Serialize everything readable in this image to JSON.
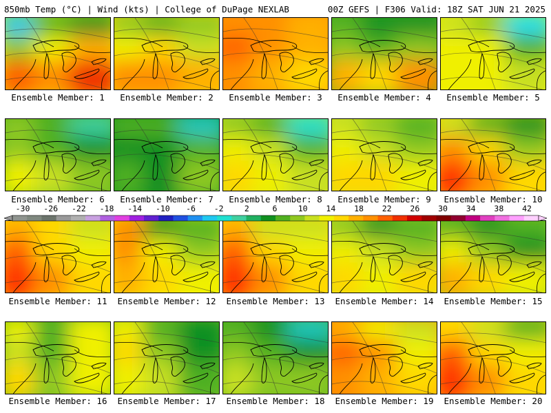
{
  "header": {
    "left": "850mb Temp (°C) | Wind (kts) | College of DuPage NEXLAB",
    "right": "00Z GEFS | F306 Valid: 18Z SAT JUN 21 2025"
  },
  "colorbar": {
    "labels": [
      "-30",
      "-26",
      "-22",
      "-18",
      "-14",
      "-10",
      "-6",
      "-2",
      "2",
      "6",
      "10",
      "14",
      "18",
      "22",
      "26",
      "30",
      "34",
      "38",
      "42"
    ],
    "colors": [
      "#8f948f",
      "#7f887f",
      "#6c746c",
      "#999999",
      "#b0b0b0",
      "#c8a0e0",
      "#b060e0",
      "#e040e0",
      "#a020e0",
      "#6020d0",
      "#2020c0",
      "#2050e0",
      "#2090f0",
      "#20c8f0",
      "#20e0d0",
      "#40d0a0",
      "#20b060",
      "#109020",
      "#50b020",
      "#90c820",
      "#c8e020",
      "#f0f000",
      "#ffd800",
      "#ffb000",
      "#ff9000",
      "#ff6000",
      "#f03000",
      "#d00000",
      "#a00000",
      "#800000",
      "#900030",
      "#c00080",
      "#e040c0",
      "#f070e0",
      "#ffa0ff",
      "#ffd0ff"
    ]
  },
  "members": [
    {
      "label": "Ensemble Member: 1",
      "c": [
        "#1ec8f0",
        "#50b020",
        "#109020",
        "#8cc820",
        "#f0f000",
        "#ffb000",
        "#ff6000",
        "#ff9000",
        "#f03000"
      ]
    },
    {
      "label": "Ensemble Member: 2",
      "c": [
        "#90c820",
        "#50b020",
        "#8cc820",
        "#f0f000",
        "#ffd800",
        "#c8e020",
        "#ff9000",
        "#ff9000",
        "#ffb000"
      ]
    },
    {
      "label": "Ensemble Member: 3",
      "c": [
        "#ff9000",
        "#ff9000",
        "#ffb000",
        "#ff6000",
        "#ff9000",
        "#ffb000",
        "#ff9000",
        "#ffb000",
        "#ffd800"
      ]
    },
    {
      "label": "Ensemble Member: 4",
      "c": [
        "#50b020",
        "#109020",
        "#109020",
        "#8cc820",
        "#50b020",
        "#8cc820",
        "#ffb000",
        "#ffd800",
        "#ff9000"
      ]
    },
    {
      "label": "Ensemble Member: 5",
      "c": [
        "#c8e020",
        "#8cc820",
        "#20e0f0",
        "#f0f000",
        "#f0f000",
        "#50b020",
        "#f0f000",
        "#f0f000",
        "#c8e020"
      ]
    },
    {
      "label": "Ensemble Member: 6",
      "c": [
        "#8cc820",
        "#50b020",
        "#40d0a0",
        "#8cc820",
        "#50b020",
        "#109020",
        "#f0f000",
        "#c8e020",
        "#8cc820"
      ]
    },
    {
      "label": "Ensemble Member: 7",
      "c": [
        "#50b020",
        "#50b020",
        "#20c8c0",
        "#109020",
        "#109020",
        "#50b020",
        "#50b020",
        "#109020",
        "#8cc820"
      ]
    },
    {
      "label": "Ensemble Member: 8",
      "c": [
        "#8cc820",
        "#50b020",
        "#20e0d0",
        "#f0f000",
        "#c8e020",
        "#50b020",
        "#ffd800",
        "#f0f000",
        "#c8e020"
      ]
    },
    {
      "label": "Ensemble Member: 9",
      "c": [
        "#c8e020",
        "#8cc820",
        "#50b020",
        "#f0f000",
        "#c8e020",
        "#8cc820",
        "#ffd800",
        "#ffd800",
        "#f0f000"
      ]
    },
    {
      "label": "Ensemble Member: 10",
      "c": [
        "#c8e020",
        "#50b020",
        "#109020",
        "#ff9000",
        "#ffd800",
        "#8cc820",
        "#ff3000",
        "#ff9000",
        "#ffd800"
      ]
    },
    {
      "label": "Ensemble Member: 11",
      "c": [
        "#ffb000",
        "#ffd800",
        "#c8e020",
        "#ff6000",
        "#ffd800",
        "#f0f000",
        "#ff3000",
        "#ff9000",
        "#ffd800"
      ]
    },
    {
      "label": "Ensemble Member: 12",
      "c": [
        "#ff9000",
        "#109020",
        "#50b020",
        "#ff9000",
        "#f0f000",
        "#8cc820",
        "#ffb000",
        "#ffd800",
        "#f0f000"
      ]
    },
    {
      "label": "Ensemble Member: 13",
      "c": [
        "#ffb000",
        "#c8e020",
        "#c8e020",
        "#ff6000",
        "#ffd800",
        "#f0f000",
        "#ff3000",
        "#ff9000",
        "#ffd800"
      ]
    },
    {
      "label": "Ensemble Member: 14",
      "c": [
        "#8cc820",
        "#109020",
        "#50b020",
        "#f0f000",
        "#c8e020",
        "#8cc820",
        "#ffd800",
        "#f0f000",
        "#ffd800"
      ]
    },
    {
      "label": "Ensemble Member: 15",
      "c": [
        "#50b020",
        "#109020",
        "#50b020",
        "#f0f000",
        "#8cc820",
        "#109020",
        "#ffb000",
        "#ffd800",
        "#f0f000"
      ]
    },
    {
      "label": "Ensemble Member: 16",
      "c": [
        "#f0f000",
        "#50b020",
        "#f0f000",
        "#c8e020",
        "#50b020",
        "#f0f000",
        "#ffd800",
        "#8cc820",
        "#f0f000"
      ]
    },
    {
      "label": "Ensemble Member: 17",
      "c": [
        "#f0f000",
        "#50b020",
        "#109020",
        "#ffd800",
        "#8cc820",
        "#109020",
        "#f0f000",
        "#c8e020",
        "#50b020"
      ]
    },
    {
      "label": "Ensemble Member: 18",
      "c": [
        "#50b020",
        "#109020",
        "#20c8c0",
        "#8cc820",
        "#50b020",
        "#109020",
        "#c8e020",
        "#8cc820",
        "#8cc820"
      ]
    },
    {
      "label": "Ensemble Member: 19",
      "c": [
        "#ffb000",
        "#f0f000",
        "#c8e020",
        "#ff6000",
        "#ff9000",
        "#f0f000",
        "#ff9000",
        "#ffb000",
        "#ffd800"
      ]
    },
    {
      "label": "Ensemble Member: 20",
      "c": [
        "#ffd800",
        "#c8e020",
        "#50b020",
        "#ff6000",
        "#ffd800",
        "#f0f000",
        "#ff3000",
        "#ff9000",
        "#ffd800"
      ]
    }
  ]
}
